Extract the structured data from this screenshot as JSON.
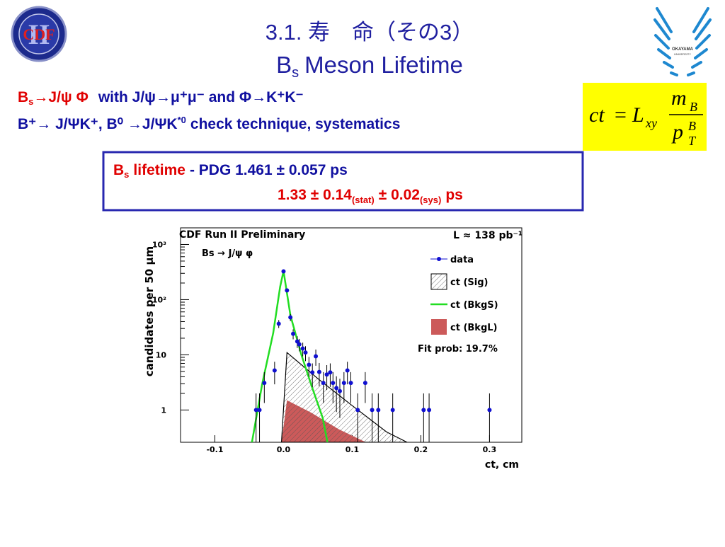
{
  "slide": {
    "title": "3.1. 寿　命（その3）",
    "subtitle": [
      "B",
      "s",
      "Meson Lifetime"
    ],
    "line1": [
      "B",
      "s",
      "→J/ψ Φ",
      "with J/ψ→μ⁺μ⁻ and Φ→K⁺K⁻"
    ],
    "line2": [
      "B⁺→ J/ΨK⁺, B⁰ →J/ΨK",
      "*0",
      "check technique, systematics"
    ],
    "result1": [
      "B",
      "s",
      "lifetime",
      "- PDG 1.461 ± 0.057 ps"
    ],
    "result2": [
      "1.33 ± 0.14",
      "(stat)",
      "± 0.02",
      "(sys)",
      "ps"
    ],
    "formula": {
      "lhs": "ct",
      "eq": "=",
      "l": "L",
      "lsub": "xy",
      "num": "m",
      "numsub": "B",
      "den": "p",
      "densup": "B",
      "densub": "T"
    },
    "logos": {
      "left": [
        "CDF",
        "II"
      ],
      "right": [
        "OKAYAMA",
        "UNIVERSITY"
      ]
    }
  },
  "chart_data": {
    "type": "scatter",
    "title": "CDF Run II Preliminary",
    "annotations": [
      "L ≈ 138 pb⁻¹",
      "Bs → J/ψ φ",
      "Fit prob: 19.7%"
    ],
    "x_label": "ct, cm",
    "y_label": "candidates per 50  μm",
    "log_y": true,
    "xlim": [
      -0.15,
      0.347
    ],
    "ylim": [
      0.26,
      2000
    ],
    "xticks": [
      -0.1,
      {
        "value": 0,
        "label": "0.0"
      },
      0.1,
      0.2,
      0.3
    ],
    "yticks": [
      1,
      10,
      {
        "value": 100,
        "label": "10²"
      },
      {
        "value": 1000,
        "label": "10³"
      }
    ],
    "series": [
      {
        "name": "data",
        "kind": "points",
        "color": "#1010d0",
        "x": [
          -0.04,
          -0.035,
          -0.028,
          -0.013,
          -0.007,
          0.0,
          0.005,
          0.01,
          0.014,
          0.02,
          0.023,
          0.028,
          0.032,
          0.037,
          0.042,
          0.047,
          0.052,
          0.058,
          0.063,
          0.068,
          0.072,
          0.077,
          0.082,
          0.088,
          0.093,
          0.098,
          0.108,
          0.119,
          0.129,
          0.138,
          0.159,
          0.204,
          0.212,
          0.3
        ],
        "values": [
          1,
          1,
          3.1,
          5.2,
          36.6,
          325,
          147,
          47.7,
          24,
          17.5,
          15.5,
          13,
          11,
          6.6,
          4.8,
          9.4,
          4.9,
          3.1,
          4.4,
          4.8,
          3.1,
          2.5,
          2.2,
          3.1,
          5.2,
          3.1,
          1,
          3.1,
          1,
          1,
          1,
          1,
          1,
          1
        ]
      },
      {
        "name": "ct (Sig)",
        "kind": "hatch",
        "color": "#000000",
        "x": [
          -0.003,
          0.005,
          0.05,
          0.1,
          0.15,
          0.18
        ],
        "values": [
          0.26,
          11,
          3.7,
          1.2,
          0.4,
          0.26
        ]
      },
      {
        "name": "ct (BkgS)",
        "kind": "line",
        "color": "#22dd22",
        "x": [
          -0.046,
          -0.031,
          -0.015,
          -0.005,
          0,
          0.01,
          0.026,
          0.041,
          0.057,
          0.064
        ],
        "values": [
          0.26,
          3,
          25,
          170,
          330,
          52,
          10,
          2.7,
          0.72,
          0.26
        ]
      },
      {
        "name": "ct (BkgL)",
        "kind": "area",
        "color": "#cc5a5a",
        "x": [
          -0.003,
          0.005,
          0.04,
          0.08,
          0.12
        ],
        "values": [
          0.26,
          1.5,
          0.9,
          0.45,
          0.26
        ]
      }
    ]
  }
}
